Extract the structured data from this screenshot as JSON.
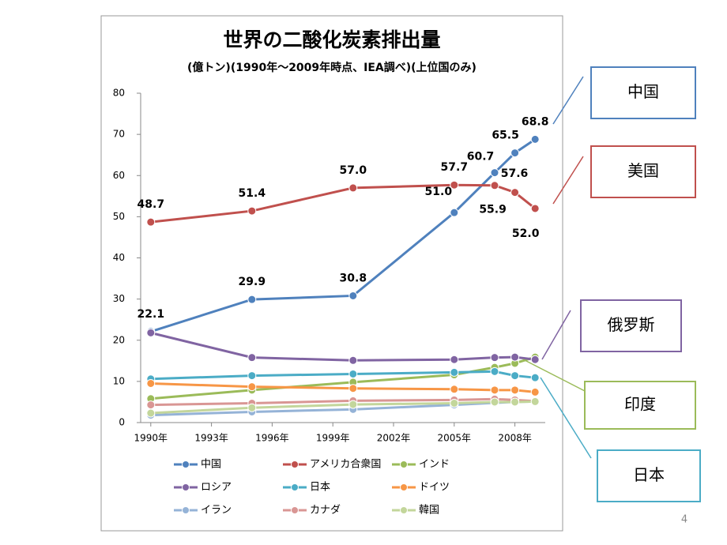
{
  "chart_data": {
    "type": "line",
    "title": "世界の二酸化炭素排出量",
    "subtitle": "(億トン)(1990年～2009年時点、IEA調べ)(上位国のみ)",
    "x": [
      1990,
      1995,
      2000,
      2005,
      2007,
      2008,
      2009
    ],
    "xlim": [
      1989.5,
      2009.5
    ],
    "xticks": [
      {
        "value": 1990,
        "label": "1990年"
      },
      {
        "value": 1993,
        "label": "1993年"
      },
      {
        "value": 1996,
        "label": "1996年"
      },
      {
        "value": 1999,
        "label": "1999年"
      },
      {
        "value": 2002,
        "label": "2002年"
      },
      {
        "value": 2005,
        "label": "2005年"
      },
      {
        "value": 2008,
        "label": "2008年"
      }
    ],
    "ylim": [
      0,
      80
    ],
    "yticks": [
      0,
      10,
      20,
      30,
      40,
      50,
      60,
      70,
      80
    ],
    "grid": false,
    "legend": "bottom",
    "series": [
      {
        "name": "中国",
        "color": "#4f81bd",
        "values": [
          22.1,
          29.9,
          30.8,
          51.0,
          60.7,
          65.5,
          68.8
        ],
        "value_labels": [
          "22.1",
          "29.9",
          "30.8",
          "51.0",
          "60.7",
          "65.5",
          "68.8"
        ]
      },
      {
        "name": "アメリカ合衆国",
        "color": "#c0504d",
        "values": [
          48.7,
          51.4,
          57.0,
          57.7,
          57.6,
          55.9,
          52.0
        ],
        "value_labels": [
          "48.7",
          "51.4",
          "57.0",
          "57.7",
          "57.6",
          "55.9",
          "52.0"
        ]
      },
      {
        "name": "インド",
        "color": "#9bbb59",
        "values": [
          5.8,
          7.9,
          9.8,
          11.6,
          13.4,
          14.4,
          15.9
        ]
      },
      {
        "name": "ロシア",
        "color": "#8064a2",
        "values": [
          21.8,
          15.8,
          15.1,
          15.3,
          15.8,
          15.9,
          15.3
        ]
      },
      {
        "name": "日本",
        "color": "#4bacc6",
        "values": [
          10.6,
          11.4,
          11.8,
          12.2,
          12.4,
          11.4,
          10.9
        ]
      },
      {
        "name": "ドイツ",
        "color": "#f79646",
        "values": [
          9.5,
          8.7,
          8.3,
          8.1,
          7.9,
          7.9,
          7.4
        ]
      },
      {
        "name": "イラン",
        "color": "#95b3d7",
        "values": [
          1.8,
          2.6,
          3.2,
          4.3,
          4.8,
          5.0,
          5.1
        ]
      },
      {
        "name": "カナダ",
        "color": "#d99694",
        "values": [
          4.3,
          4.7,
          5.3,
          5.5,
          5.7,
          5.5,
          5.2
        ]
      },
      {
        "name": "韓国",
        "color": "#c3d69b",
        "values": [
          2.3,
          3.6,
          4.4,
          4.7,
          5.0,
          5.0,
          5.1
        ]
      }
    ]
  },
  "callouts": [
    {
      "label": "中国",
      "color": "#4f81bd"
    },
    {
      "label": "美国",
      "color": "#c0504d"
    },
    {
      "label": "俄罗斯",
      "color": "#8064a2"
    },
    {
      "label": "印度",
      "color": "#9bbb59"
    },
    {
      "label": "日本",
      "color": "#4bacc6"
    }
  ],
  "page_number": "4"
}
